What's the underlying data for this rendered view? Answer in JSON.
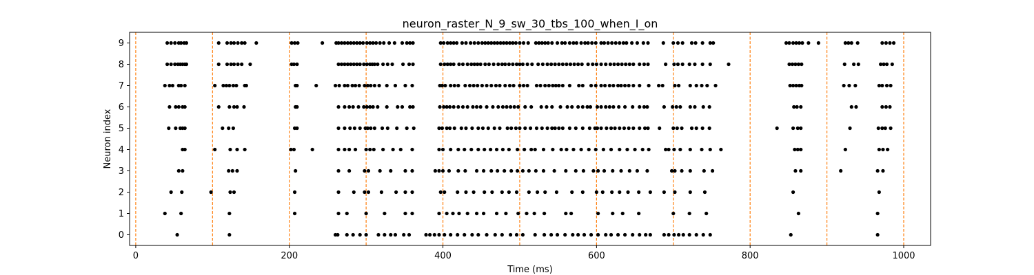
{
  "chart_data": {
    "type": "scatter",
    "title": "neuron_raster_N_9_sw_30_tbs_100_when_I_on",
    "xlabel": "Time (ms)",
    "ylabel": "Neuron index",
    "xlim": [
      -8,
      1035
    ],
    "ylim": [
      -0.5,
      9.5
    ],
    "xticks": [
      0,
      200,
      400,
      600,
      800,
      1000
    ],
    "yticks": [
      0,
      1,
      2,
      3,
      4,
      5,
      6,
      7,
      8,
      9
    ],
    "grid": false,
    "marker_color": "#000000",
    "vlines": {
      "x": [
        0,
        100,
        200,
        300,
        400,
        500,
        600,
        700,
        800,
        900,
        1000
      ],
      "color": "#ff7f0e",
      "style": "dashed"
    },
    "spikes": [
      {
        "neuron": 9,
        "times": [
          41,
          46,
          51,
          56,
          59,
          63,
          66,
          108,
          119,
          124,
          128,
          133,
          138,
          142,
          157,
          203,
          207,
          211,
          243,
          261,
          264,
          268,
          272,
          276,
          280,
          284,
          288,
          292,
          296,
          301,
          305,
          309,
          313,
          318,
          323,
          330,
          337,
          347,
          353,
          357,
          361,
          397,
          401,
          406,
          410,
          414,
          418,
          425,
          430,
          436,
          441,
          446,
          451,
          455,
          459,
          463,
          467,
          471,
          475,
          479,
          483,
          487,
          491,
          495,
          500,
          505,
          511,
          521,
          525,
          529,
          533,
          537,
          542,
          549,
          555,
          559,
          565,
          570,
          574,
          580,
          585,
          589,
          594,
          599,
          606,
          610,
          615,
          620,
          625,
          630,
          635,
          639,
          646,
          653,
          661,
          667,
          687,
          700,
          706,
          712,
          724,
          729,
          738,
          748,
          752,
          847,
          851,
          856,
          860,
          864,
          868,
          876,
          889,
          924,
          928,
          932,
          940,
          972,
          977,
          982,
          987
        ]
      },
      {
        "neuron": 8,
        "times": [
          41,
          46,
          51,
          55,
          58,
          61,
          64,
          66,
          108,
          119,
          124,
          128,
          133,
          138,
          149,
          203,
          206,
          210,
          264,
          268,
          272,
          276,
          280,
          284,
          288,
          292,
          297,
          301,
          305,
          308,
          311,
          315,
          322,
          328,
          334,
          348,
          356,
          361,
          397,
          402,
          406,
          410,
          414,
          421,
          426,
          432,
          437,
          441,
          445,
          449,
          455,
          460,
          466,
          472,
          477,
          481,
          486,
          491,
          496,
          500,
          504,
          510,
          516,
          524,
          530,
          536,
          541,
          546,
          551,
          556,
          561,
          566,
          571,
          576,
          581,
          589,
          595,
          600,
          606,
          612,
          618,
          623,
          628,
          633,
          638,
          643,
          648,
          656,
          662,
          667,
          690,
          701,
          706,
          712,
          721,
          728,
          738,
          748,
          772,
          851,
          855,
          859,
          863,
          867,
          923,
          935,
          941,
          970,
          974,
          978,
          985
        ]
      },
      {
        "neuron": 7,
        "times": [
          38,
          44,
          48,
          56,
          59,
          64,
          103,
          114,
          118,
          122,
          127,
          131,
          142,
          144,
          208,
          210,
          235,
          260,
          265,
          272,
          276,
          282,
          286,
          291,
          298,
          302,
          306,
          311,
          317,
          327,
          338,
          351,
          360,
          396,
          399,
          403,
          410,
          415,
          420,
          429,
          435,
          440,
          445,
          451,
          457,
          463,
          469,
          474,
          481,
          487,
          492,
          500,
          505,
          510,
          522,
          527,
          533,
          538,
          543,
          547,
          551,
          556,
          565,
          577,
          582,
          593,
          599,
          606,
          611,
          617,
          622,
          628,
          632,
          637,
          642,
          648,
          656,
          668,
          681,
          686,
          702,
          707,
          722,
          730,
          737,
          744,
          755,
          852,
          856,
          860,
          864,
          867,
          922,
          929,
          937,
          968,
          972,
          978,
          983
        ]
      },
      {
        "neuron": 6,
        "times": [
          44,
          52,
          56,
          61,
          64,
          108,
          122,
          128,
          132,
          141,
          208,
          210,
          264,
          272,
          278,
          283,
          290,
          297,
          301,
          305,
          309,
          315,
          327,
          341,
          347,
          357,
          361,
          396,
          401,
          405,
          409,
          414,
          420,
          426,
          432,
          439,
          444,
          449,
          457,
          465,
          472,
          478,
          483,
          488,
          493,
          498,
          507,
          515,
          528,
          535,
          542,
          553,
          562,
          568,
          576,
          582,
          588,
          592,
          601,
          606,
          612,
          617,
          622,
          629,
          637,
          647,
          656,
          662,
          666,
          688,
          699,
          704,
          709,
          722,
          728,
          739,
          747,
          857,
          861,
          866,
          932,
          938,
          972,
          977,
          982
        ]
      },
      {
        "neuron": 5,
        "times": [
          43,
          52,
          58,
          61,
          64,
          113,
          121,
          127,
          207,
          210,
          264,
          272,
          279,
          285,
          292,
          299,
          302,
          306,
          311,
          321,
          328,
          340,
          353,
          362,
          395,
          399,
          405,
          409,
          415,
          424,
          430,
          438,
          446,
          452,
          459,
          467,
          474,
          484,
          489,
          495,
          500,
          507,
          514,
          522,
          529,
          536,
          542,
          546,
          551,
          556,
          565,
          573,
          582,
          591,
          598,
          601,
          606,
          613,
          619,
          624,
          630,
          636,
          642,
          648,
          656,
          663,
          667,
          682,
          700,
          705,
          711,
          724,
          730,
          738,
          747,
          835,
          856,
          862,
          866,
          930,
          967,
          972,
          976,
          983
        ]
      },
      {
        "neuron": 4,
        "times": [
          61,
          64,
          103,
          123,
          132,
          142,
          202,
          206,
          230,
          264,
          272,
          278,
          286,
          300,
          305,
          310,
          322,
          335,
          345,
          360,
          395,
          400,
          410,
          420,
          428,
          437,
          446,
          454,
          462,
          470,
          478,
          486,
          497,
          506,
          515,
          520,
          531,
          543,
          554,
          561,
          570,
          580,
          590,
          599,
          609,
          619,
          630,
          640,
          650,
          660,
          668,
          690,
          694,
          701,
          709,
          722,
          737,
          748,
          762,
          858,
          862,
          866,
          924,
          968,
          973,
          979
        ]
      },
      {
        "neuron": 3,
        "times": [
          56,
          61,
          121,
          126,
          132,
          208,
          264,
          278,
          298,
          303,
          318,
          332,
          351,
          360,
          390,
          395,
          400,
          408,
          420,
          429,
          444,
          453,
          463,
          471,
          480,
          489,
          497,
          504,
          512,
          521,
          531,
          545,
          560,
          573,
          583,
          596,
          602,
          610,
          621,
          632,
          643,
          653,
          666,
          698,
          702,
          711,
          722,
          740,
          751,
          859,
          866,
          918,
          966,
          973
        ]
      },
      {
        "neuron": 2,
        "times": [
          46,
          60,
          98,
          123,
          128,
          207,
          264,
          284,
          298,
          303,
          320,
          339,
          351,
          360,
          397,
          402,
          419,
          430,
          440,
          454,
          464,
          477,
          486,
          496,
          512,
          523,
          533,
          548,
          568,
          582,
          600,
          608,
          620,
          630,
          641,
          655,
          670,
          688,
          702,
          722,
          741,
          856,
          968
        ]
      },
      {
        "neuron": 1,
        "times": [
          38,
          59,
          122,
          207,
          264,
          275,
          300,
          324,
          351,
          360,
          395,
          405,
          413,
          421,
          432,
          444,
          453,
          470,
          482,
          498,
          509,
          519,
          532,
          560,
          567,
          602,
          621,
          634,
          655,
          700,
          721,
          743,
          863,
          966
        ]
      },
      {
        "neuron": 0,
        "times": [
          54,
          122,
          260,
          263,
          275,
          283,
          292,
          300,
          316,
          324,
          332,
          338,
          349,
          356,
          378,
          383,
          389,
          395,
          402,
          410,
          419,
          428,
          438,
          446,
          457,
          468,
          477,
          488,
          496,
          504,
          520,
          532,
          541,
          549,
          559,
          569,
          576,
          584,
          593,
          602,
          612,
          619,
          628,
          637,
          647,
          656,
          664,
          670,
          688,
          694,
          701,
          707,
          713,
          721,
          730,
          739,
          748,
          853,
          966
        ]
      }
    ]
  }
}
